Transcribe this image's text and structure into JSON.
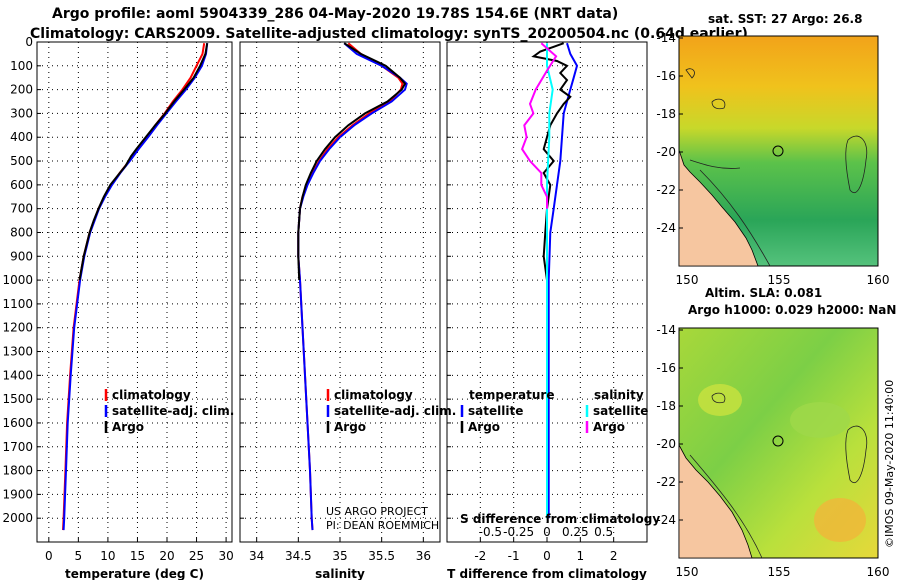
{
  "header": {
    "line1": "Argo profile: aoml 5904339_286 04-May-2020 19.78S 154.6E (NRT data)",
    "line2": "Climatology: CARS2009. Satellite-adjusted climatology: synTS_20200504.nc (0.64d earlier)"
  },
  "colors": {
    "climatology": "#ff0000",
    "satellite": "#0000ff",
    "argo": "#000000",
    "argo_salinity": "#ff00ff",
    "satellite_salinity": "#00ffff"
  },
  "chart_data": [
    {
      "type": "line",
      "name": "temperature",
      "xlabel": "temperature (deg C)",
      "ylabel": "",
      "xlim": [
        -2,
        31
      ],
      "ylim": [
        2100,
        0
      ],
      "xticks": [
        0,
        5,
        10,
        15,
        20,
        25,
        30
      ],
      "yticks": [
        0,
        100,
        200,
        300,
        400,
        500,
        600,
        700,
        800,
        900,
        1000,
        1100,
        1200,
        1300,
        1400,
        1500,
        1600,
        1700,
        1800,
        1900,
        2000
      ],
      "grid": true,
      "legend": [
        "climatology",
        "satellite-adj. clim.",
        "Argo"
      ],
      "series": [
        {
          "name": "climatology",
          "depth": [
            5,
            50,
            100,
            150,
            200,
            250,
            300,
            350,
            400,
            450,
            500,
            550,
            600,
            650,
            700,
            800,
            900,
            1000,
            1200,
            1400,
            1600,
            1800,
            2000,
            2050
          ],
          "values": [
            26.3,
            26.0,
            25.0,
            24.0,
            22.6,
            21.0,
            19.6,
            18.0,
            16.6,
            15.0,
            13.6,
            12.0,
            10.6,
            9.4,
            8.4,
            6.9,
            5.9,
            5.2,
            4.2,
            3.6,
            3.1,
            2.8,
            2.5,
            2.4
          ]
        },
        {
          "name": "satellite-adj. clim.",
          "depth": [
            5,
            50,
            100,
            150,
            200,
            250,
            300,
            350,
            400,
            450,
            500,
            550,
            600,
            650,
            700,
            800,
            900,
            1000,
            1200,
            1400,
            1600,
            1800,
            2000,
            2050
          ],
          "values": [
            26.8,
            26.6,
            25.9,
            24.7,
            23.2,
            21.5,
            19.9,
            18.3,
            16.8,
            15.2,
            13.7,
            12.1,
            10.7,
            9.5,
            8.5,
            7.0,
            6.0,
            5.3,
            4.3,
            3.7,
            3.2,
            2.9,
            2.6,
            2.5
          ]
        },
        {
          "name": "Argo",
          "depth": [
            5,
            50,
            100,
            150,
            200,
            250,
            300,
            350,
            400,
            450,
            480,
            520,
            560,
            600,
            650,
            700,
            750,
            800,
            900,
            1000
          ],
          "values": [
            26.8,
            26.5,
            25.6,
            24.5,
            22.9,
            21.2,
            19.7,
            18.0,
            16.4,
            14.8,
            13.9,
            13.0,
            11.7,
            10.4,
            9.3,
            8.4,
            7.6,
            6.9,
            5.9,
            5.2
          ]
        }
      ]
    },
    {
      "type": "line",
      "name": "salinity",
      "xlabel": "salinity",
      "ylabel": "",
      "xlim": [
        33.8,
        36.2
      ],
      "ylim": [
        2100,
        0
      ],
      "xticks": [
        34,
        34.5,
        35,
        35.5,
        36
      ],
      "xtick_labels": [
        "34",
        "34.5",
        "35",
        "35.5",
        "36"
      ],
      "grid": true,
      "legend": [
        "climatology",
        "satellite-adj. clim.",
        "Argo"
      ],
      "annotation": [
        "US ARGO PROJECT",
        "PI: DEAN ROEMMICH"
      ],
      "series": [
        {
          "name": "climatology",
          "depth": [
            5,
            50,
            100,
            150,
            175,
            200,
            250,
            300,
            350,
            400,
            450,
            500,
            550,
            600,
            650,
            700,
            800,
            900,
            1000,
            1200,
            1400,
            1600,
            1800,
            2000,
            2050
          ],
          "values": [
            35.1,
            35.25,
            35.5,
            35.7,
            35.75,
            35.73,
            35.6,
            35.35,
            35.15,
            34.98,
            34.85,
            34.75,
            34.67,
            34.6,
            34.55,
            34.52,
            34.5,
            34.5,
            34.52,
            34.55,
            34.58,
            34.61,
            34.64,
            34.66,
            34.67
          ]
        },
        {
          "name": "satellite-adj. clim.",
          "depth": [
            5,
            50,
            100,
            150,
            175,
            200,
            250,
            300,
            350,
            400,
            450,
            500,
            550,
            600,
            650,
            700,
            800,
            900,
            1000,
            1200,
            1400,
            1600,
            1800,
            2000,
            2050
          ],
          "values": [
            35.05,
            35.2,
            35.5,
            35.72,
            35.8,
            35.78,
            35.62,
            35.38,
            35.17,
            35.0,
            34.87,
            34.76,
            34.68,
            34.61,
            34.56,
            34.52,
            34.5,
            34.5,
            34.52,
            34.55,
            34.58,
            34.61,
            34.64,
            34.66,
            34.67
          ]
        },
        {
          "name": "Argo",
          "depth": [
            5,
            50,
            100,
            150,
            175,
            200,
            250,
            300,
            350,
            400,
            450,
            500,
            550,
            600,
            650,
            700,
            800,
            900,
            1000
          ],
          "values": [
            35.05,
            35.25,
            35.55,
            35.72,
            35.78,
            35.74,
            35.57,
            35.3,
            35.1,
            34.94,
            34.82,
            34.72,
            34.65,
            34.59,
            34.55,
            34.52,
            34.5,
            34.5,
            34.51
          ]
        }
      ]
    },
    {
      "type": "line",
      "name": "difference",
      "xlabel": "T difference from climatology",
      "ylabel": "",
      "xlim": [
        -3,
        3
      ],
      "ylim": [
        2100,
        0
      ],
      "xticks": [
        -2,
        -1,
        0,
        1,
        2
      ],
      "xtick_labels": [
        "-2",
        "-1",
        "0",
        "1",
        "2"
      ],
      "grid": true,
      "s_axis_label": "S difference from climatology",
      "s_ticks": [
        "-0.5",
        "-0.25",
        "0",
        "0.25",
        "0.5"
      ],
      "legend_left_title": "temperature",
      "legend_right_title": "salinity",
      "legend": [
        "satellite",
        "Argo"
      ],
      "series": [
        {
          "name": "T satellite",
          "depth": [
            5,
            50,
            100,
            150,
            200,
            250,
            300,
            400,
            500,
            600,
            700,
            800,
            1000,
            1200,
            1500,
            2000
          ],
          "values": [
            0.6,
            0.7,
            0.9,
            0.8,
            0.7,
            0.6,
            0.5,
            0.45,
            0.4,
            0.3,
            0.2,
            0.1,
            0.05,
            0.05,
            0.05,
            0.05
          ]
        },
        {
          "name": "T Argo",
          "depth": [
            5,
            20,
            40,
            60,
            80,
            100,
            130,
            160,
            200,
            230,
            260,
            300,
            350,
            400,
            450,
            500,
            550,
            600,
            700,
            800,
            900,
            1000
          ],
          "values": [
            0.5,
            0.2,
            -0.2,
            -0.4,
            0.3,
            0.6,
            0.4,
            0.6,
            0.4,
            0.7,
            0.5,
            0.3,
            0.1,
            0.0,
            -0.1,
            0.2,
            -0.1,
            0.1,
            0.0,
            -0.05,
            -0.1,
            0.0
          ]
        },
        {
          "name": "S satellite",
          "depth": [
            5,
            100,
            200,
            300,
            400,
            500,
            600,
            800,
            1000,
            1500,
            2000
          ],
          "values": [
            0.0,
            0.0,
            0.05,
            0.02,
            0.02,
            0.01,
            0.0,
            0.0,
            0.0,
            0.0,
            0.0
          ]
        },
        {
          "name": "S Argo",
          "depth": [
            5,
            60,
            120,
            200,
            260,
            300,
            350,
            400,
            450,
            500,
            550,
            600,
            650,
            700
          ],
          "values": [
            -0.05,
            0.08,
            0.0,
            -0.1,
            -0.15,
            -0.12,
            -0.2,
            -0.18,
            -0.22,
            -0.15,
            -0.05,
            -0.05,
            0.0,
            0.0
          ]
        }
      ]
    }
  ],
  "maps": [
    {
      "title": "sat. SST: 27 Argo: 26.8",
      "xticks": [
        "150",
        "155",
        "160"
      ],
      "yticks": [
        "-14",
        "-16",
        "-18",
        "-20",
        "-22",
        "-24"
      ]
    },
    {
      "title_line1": "Altim. SLA: 0.081",
      "title_line2": "Argo h1000: 0.029 h2000: NaN",
      "xticks": [
        "150",
        "155",
        "160"
      ],
      "yticks": [
        "-14",
        "-16",
        "-18",
        "-20",
        "-22",
        "-24"
      ]
    }
  ],
  "credit": "©IMOS 09-May-2020 11:40:00"
}
